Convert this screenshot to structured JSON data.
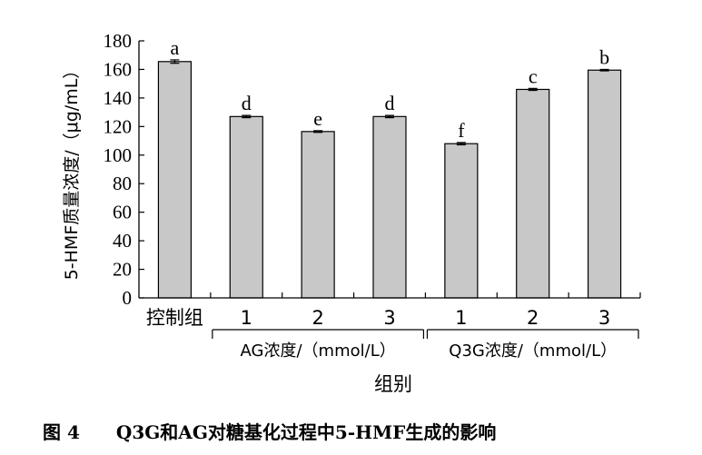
{
  "chart_data": {
    "type": "bar",
    "ylabel": "5-HMF质量浓度/（μg/mL）",
    "xlabel": "组别",
    "ylim": [
      0,
      180
    ],
    "yticks": [
      0,
      20,
      40,
      60,
      80,
      100,
      120,
      140,
      160,
      180
    ],
    "categories": [
      "控制组",
      "1",
      "2",
      "3",
      "1",
      "2",
      "3"
    ],
    "values": [
      165.5,
      127,
      116.5,
      127,
      108,
      146,
      159.5
    ],
    "errors": [
      1.2,
      0.8,
      0.6,
      0.8,
      0.8,
      0.7,
      0.5
    ],
    "significance": [
      "a",
      "d",
      "e",
      "d",
      "f",
      "c",
      "b"
    ],
    "groups": [
      {
        "label": "AG浓度/（mmol/L）",
        "from": 1,
        "to": 3
      },
      {
        "label": "Q3G浓度/（mmol/L）",
        "from": 4,
        "to": 6
      }
    ],
    "bar_color": "#c8c8c8",
    "grid": false
  },
  "caption": {
    "number": "图 4",
    "text": "Q3G和AG对糖基化过程中5-HMF生成的影响"
  }
}
